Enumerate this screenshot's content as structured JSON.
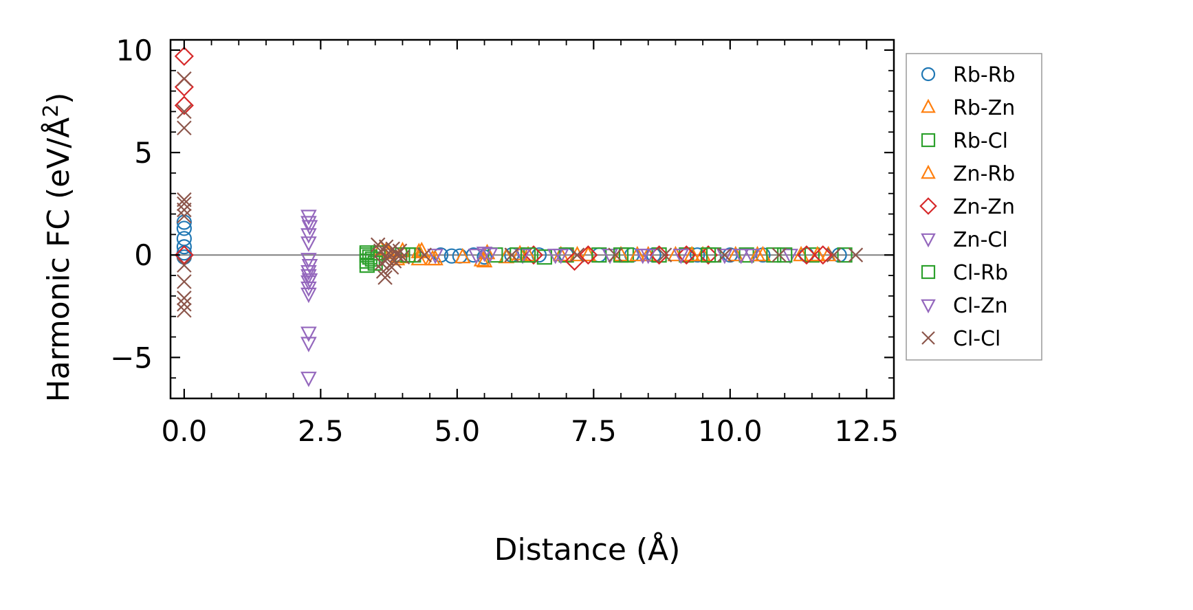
{
  "chart_data": {
    "type": "scatter",
    "title": "",
    "xlabel": "Distance (Å)",
    "ylabel_main": "Harmonic FC (eV/Å",
    "ylabel_sup": "2",
    "ylabel_close": ")",
    "xlim": [
      -0.25,
      13.0
    ],
    "ylim": [
      -7.0,
      10.5
    ],
    "xticks": [
      0.0,
      2.5,
      5.0,
      7.5,
      10.0,
      12.5
    ],
    "xtick_labels": [
      "0.0",
      "2.5",
      "5.0",
      "7.5",
      "10.0",
      "12.5"
    ],
    "yticks": [
      -5,
      0,
      5,
      10
    ],
    "ytick_labels": [
      "−5",
      "0",
      "5",
      "10"
    ],
    "zero_line": 0,
    "legend_location": "outside-right",
    "series": [
      {
        "name": "Rb-Rb",
        "marker": "circle",
        "color": "#1f77b4",
        "points": [
          [
            0,
            1.6
          ],
          [
            0,
            1.3
          ],
          [
            0,
            0.8
          ],
          [
            0,
            0.4
          ],
          [
            0,
            0.1
          ],
          [
            0,
            -0.1
          ],
          [
            4.7,
            0.0
          ],
          [
            4.9,
            -0.05
          ],
          [
            5.05,
            -0.05
          ],
          [
            5.3,
            0.0
          ],
          [
            5.5,
            -0.1
          ],
          [
            6.0,
            0.0
          ],
          [
            6.5,
            0.0
          ],
          [
            7.0,
            0.0
          ],
          [
            7.6,
            0.0
          ],
          [
            8.2,
            0.0
          ],
          [
            8.6,
            0.0
          ],
          [
            9.4,
            0.0
          ],
          [
            10.0,
            0.0
          ],
          [
            10.6,
            0.0
          ],
          [
            11.4,
            0.0
          ],
          [
            12.0,
            0.0
          ]
        ]
      },
      {
        "name": "Rb-Zn",
        "marker": "triangle-up",
        "color": "#ff7f0e",
        "points": [
          [
            3.6,
            0.3
          ],
          [
            3.75,
            0.1
          ],
          [
            3.9,
            -0.2
          ],
          [
            4.0,
            0.2
          ],
          [
            4.3,
            -0.2
          ],
          [
            4.35,
            0.2
          ],
          [
            4.55,
            -0.2
          ],
          [
            5.1,
            -0.1
          ],
          [
            5.5,
            -0.3
          ],
          [
            5.55,
            0.1
          ],
          [
            5.9,
            -0.1
          ],
          [
            6.3,
            0.0
          ],
          [
            6.9,
            0.0
          ],
          [
            7.4,
            0.0
          ],
          [
            8.0,
            0.0
          ],
          [
            8.5,
            0.0
          ],
          [
            9.0,
            0.0
          ],
          [
            9.5,
            0.0
          ],
          [
            10.1,
            0.0
          ],
          [
            10.6,
            0.0
          ],
          [
            11.3,
            0.0
          ],
          [
            11.8,
            0.0
          ]
        ]
      },
      {
        "name": "Rb-Cl",
        "marker": "square",
        "color": "#2ca02c",
        "points": [
          [
            3.35,
            -0.5
          ],
          [
            3.35,
            -0.3
          ],
          [
            3.35,
            0.0
          ],
          [
            3.35,
            0.1
          ],
          [
            3.45,
            -0.2
          ],
          [
            3.55,
            0.1
          ],
          [
            4.0,
            0.0
          ],
          [
            4.2,
            0.0
          ],
          [
            5.7,
            0.0
          ],
          [
            6.1,
            0.0
          ],
          [
            6.6,
            -0.1
          ],
          [
            7.0,
            0.0
          ],
          [
            7.6,
            0.0
          ],
          [
            8.1,
            0.0
          ],
          [
            8.7,
            0.0
          ],
          [
            9.2,
            0.0
          ],
          [
            9.7,
            0.0
          ],
          [
            10.3,
            0.0
          ],
          [
            10.8,
            0.0
          ],
          [
            11.5,
            0.0
          ],
          [
            12.1,
            0.0
          ]
        ]
      },
      {
        "name": "Zn-Rb",
        "marker": "triangle-up",
        "color": "#ff7f0e",
        "points": [
          [
            3.7,
            0.2
          ],
          [
            3.95,
            -0.1
          ],
          [
            4.3,
            0.15
          ],
          [
            4.6,
            -0.2
          ],
          [
            5.45,
            -0.25
          ],
          [
            6.15,
            0.05
          ],
          [
            7.2,
            0.0
          ],
          [
            8.3,
            0.0
          ],
          [
            9.3,
            0.0
          ],
          [
            10.5,
            0.0
          ],
          [
            11.6,
            0.0
          ]
        ]
      },
      {
        "name": "Zn-Zn",
        "marker": "diamond",
        "color": "#d62728",
        "points": [
          [
            0,
            9.7
          ],
          [
            0,
            8.2
          ],
          [
            0,
            7.3
          ],
          [
            0,
            0.0
          ],
          [
            6.4,
            0.0
          ],
          [
            7.15,
            -0.3
          ],
          [
            7.4,
            0.0
          ],
          [
            8.7,
            0.0
          ],
          [
            9.2,
            0.0
          ],
          [
            9.6,
            0.0
          ],
          [
            11.4,
            0.0
          ],
          [
            11.7,
            0.0
          ]
        ]
      },
      {
        "name": "Zn-Cl",
        "marker": "triangle-down",
        "color": "#9467bd",
        "points": [
          [
            2.28,
            1.9
          ],
          [
            2.28,
            1.6
          ],
          [
            2.28,
            1.0
          ],
          [
            2.28,
            0.6
          ],
          [
            2.28,
            -0.2
          ],
          [
            2.28,
            -0.8
          ],
          [
            2.28,
            -1.0
          ],
          [
            2.28,
            -1.3
          ],
          [
            2.28,
            -1.6
          ],
          [
            2.28,
            -1.9
          ],
          [
            2.28,
            -3.8
          ],
          [
            2.28,
            -4.3
          ],
          [
            2.28,
            -6.0
          ],
          [
            4.6,
            0.0
          ],
          [
            5.35,
            0.0
          ],
          [
            5.6,
            0.05
          ],
          [
            6.2,
            0.0
          ],
          [
            6.9,
            0.0
          ],
          [
            7.8,
            0.0
          ],
          [
            8.4,
            0.0
          ],
          [
            9.1,
            0.0
          ],
          [
            9.9,
            0.0
          ],
          [
            10.4,
            0.0
          ],
          [
            11.1,
            0.0
          ]
        ]
      },
      {
        "name": "Cl-Rb",
        "marker": "square",
        "color": "#2ca02c",
        "points": [
          [
            3.4,
            -0.1
          ],
          [
            3.5,
            -0.4
          ],
          [
            4.1,
            0.0
          ],
          [
            6.3,
            0.0
          ],
          [
            8.0,
            0.0
          ],
          [
            9.6,
            0.0
          ],
          [
            11.0,
            0.0
          ]
        ]
      },
      {
        "name": "Cl-Zn",
        "marker": "triangle-down",
        "color": "#9467bd",
        "points": [
          [
            2.3,
            1.4
          ],
          [
            2.3,
            -0.5
          ],
          [
            2.3,
            -1.2
          ],
          [
            5.5,
            0.1
          ],
          [
            6.8,
            0.0
          ],
          [
            8.5,
            0.0
          ],
          [
            10.2,
            0.0
          ]
        ]
      },
      {
        "name": "Cl-Cl",
        "marker": "x",
        "color": "#8c564b",
        "points": [
          [
            0,
            8.6
          ],
          [
            0,
            7.0
          ],
          [
            0,
            6.2
          ],
          [
            0,
            2.7
          ],
          [
            0,
            2.5
          ],
          [
            0,
            2.2
          ],
          [
            0,
            1.9
          ],
          [
            0,
            -0.5
          ],
          [
            0,
            -1.3
          ],
          [
            0,
            -2.1
          ],
          [
            0,
            -2.4
          ],
          [
            0,
            -2.7
          ],
          [
            3.55,
            0.5
          ],
          [
            3.6,
            0.2
          ],
          [
            3.62,
            -0.4
          ],
          [
            3.65,
            -0.8
          ],
          [
            3.68,
            -1.1
          ],
          [
            3.7,
            0.4
          ],
          [
            3.72,
            -0.2
          ],
          [
            3.75,
            0.1
          ],
          [
            3.8,
            -0.6
          ],
          [
            3.82,
            0.3
          ],
          [
            3.85,
            -0.3
          ],
          [
            3.9,
            0.0
          ],
          [
            3.95,
            0.2
          ],
          [
            4.0,
            -0.1
          ],
          [
            4.4,
            0.0
          ],
          [
            6.0,
            0.0
          ],
          [
            7.2,
            0.0
          ],
          [
            7.9,
            0.0
          ],
          [
            8.8,
            0.0
          ],
          [
            9.9,
            0.0
          ],
          [
            10.9,
            0.0
          ],
          [
            11.9,
            0.0
          ],
          [
            12.3,
            0.0
          ]
        ]
      }
    ]
  }
}
